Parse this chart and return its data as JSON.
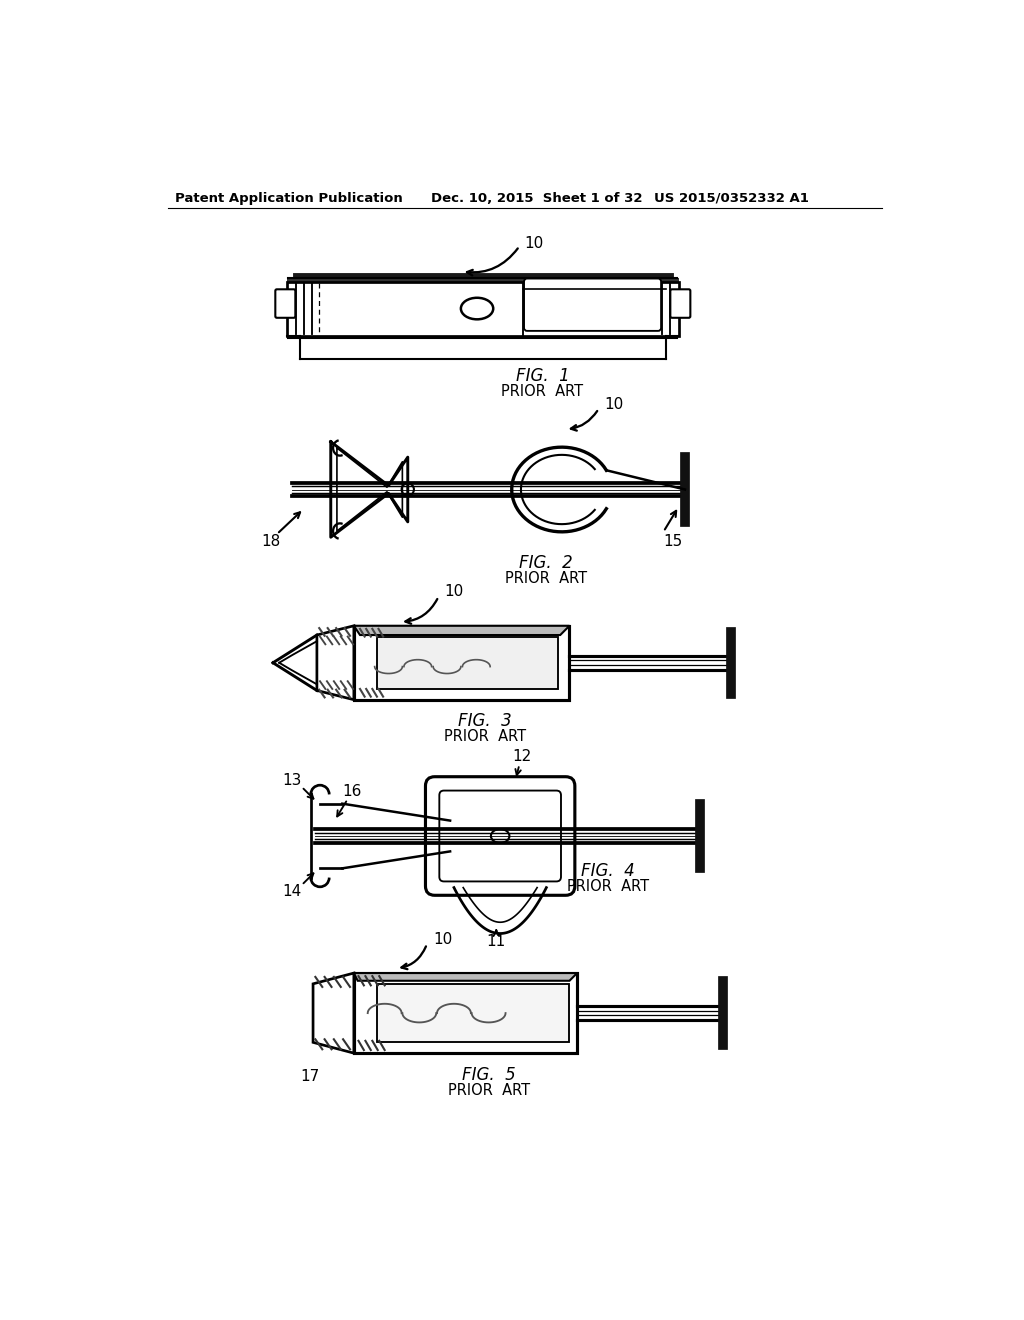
{
  "background_color": "#ffffff",
  "page_width": 10.24,
  "page_height": 13.2,
  "header_left": "Patent Application Publication",
  "header_center": "Dec. 10, 2015  Sheet 1 of 32",
  "header_right": "US 2015/0352332 A1",
  "line_color": "#000000",
  "line_width": 1.5,
  "text_color": "#000000",
  "fig1_label": "FIG.  1",
  "fig2_label": "FIG.  2",
  "fig3_label": "FIG.  3",
  "fig4_label": "FIG.  4",
  "fig5_label": "FIG.  5",
  "prior_art": "PRIOR  ART"
}
